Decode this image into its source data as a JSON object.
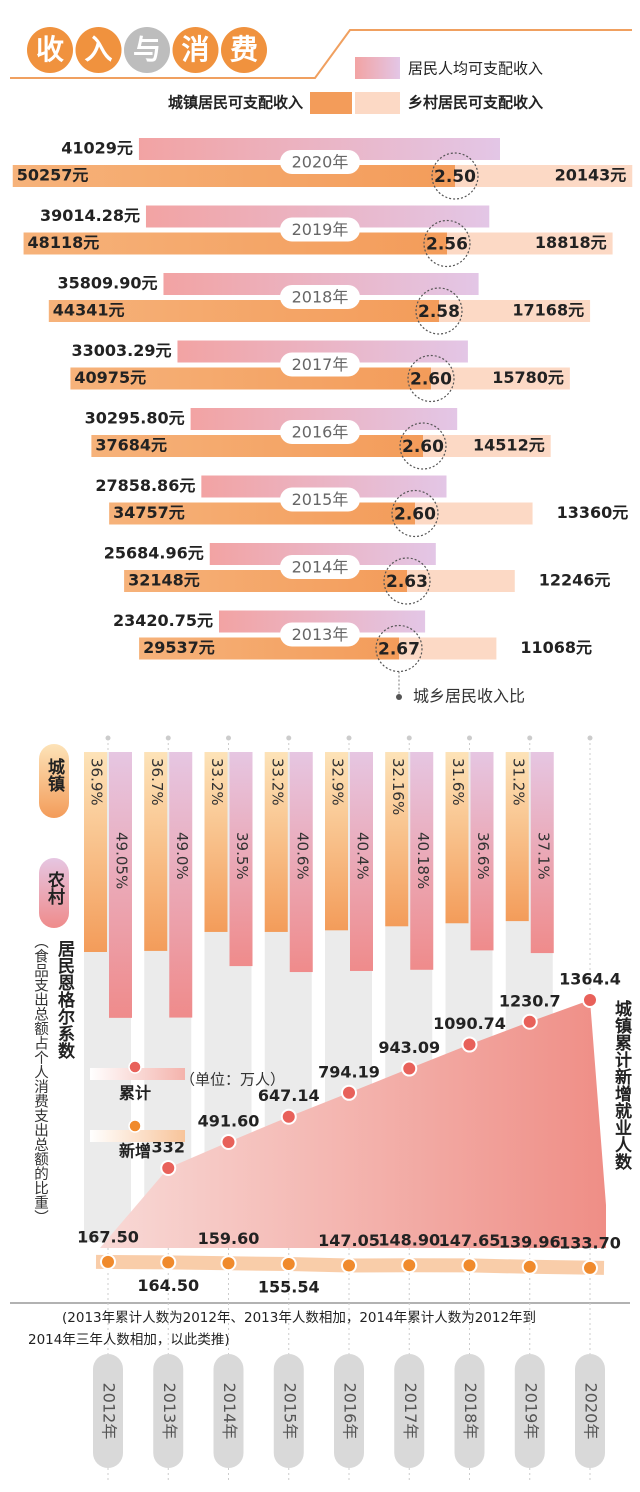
{
  "title": [
    "收",
    "入",
    "与",
    "消",
    "费"
  ],
  "chart_data": [
    {
      "type": "bar",
      "orientation": "horizontal",
      "categories": [
        "2020年",
        "2019年",
        "2018年",
        "2017年",
        "2016年",
        "2015年",
        "2014年",
        "2013年"
      ],
      "series": [
        {
          "name": "居民人均可支配收入",
          "color": "#f2a3a3",
          "values": [
            41029,
            39014.28,
            35809.9,
            33003.29,
            30295.8,
            27858.86,
            25684.96,
            23420.75
          ],
          "value_labels": [
            "41029元",
            "39014.28元",
            "35809.90元",
            "33003.29元",
            "30295.80元",
            "27858.86元",
            "25684.96元",
            "23420.75元"
          ]
        },
        {
          "name": "城镇居民可支配收入",
          "color": "#f39c5a",
          "values": [
            50257,
            48118,
            44341,
            40975,
            37684,
            34757,
            32148,
            29537
          ],
          "value_labels": [
            "50257元",
            "48118元",
            "44341元",
            "40975元",
            "37684元",
            "34757元",
            "32148元",
            "29537元"
          ]
        },
        {
          "name": "乡村居民可支配收入",
          "color": "#fcd9c5",
          "values": [
            20143,
            18818,
            17168,
            15780,
            14512,
            13360,
            12246,
            11068
          ],
          "value_labels": [
            "20143元",
            "18818元",
            "17168元",
            "15780元",
            "14512元",
            "13360元",
            "12246元",
            "11068元"
          ]
        }
      ],
      "ratio": {
        "name": "城乡居民收入比",
        "values": [
          2.5,
          2.56,
          2.58,
          2.6,
          2.6,
          2.6,
          2.63,
          2.67
        ],
        "value_labels": [
          "2.50",
          "2.56",
          "2.58",
          "2.60",
          "2.60",
          "2.60",
          "2.63",
          "2.67"
        ]
      }
    },
    {
      "type": "column",
      "label": "居民恩格尔系数",
      "sublabel": "（食品支出总额占个人消费支出总额的比重）",
      "series": [
        {
          "name": "城镇",
          "color": "#f39c5a",
          "values": [
            36.9,
            36.7,
            33.2,
            33.2,
            32.9,
            32.16,
            31.6,
            31.2
          ],
          "value_labels": [
            "36.9%",
            "36.7%",
            "33.2%",
            "33.2%",
            "32.9%",
            "32.16%",
            "31.6%",
            "31.2%"
          ]
        },
        {
          "name": "农村",
          "color": "#ef8b8b",
          "values": [
            49.05,
            49.0,
            39.5,
            40.6,
            40.4,
            40.18,
            36.6,
            37.1
          ],
          "value_labels": [
            "49.05%",
            "49.0%",
            "39.5%",
            "40.6%",
            "40.4%",
            "40.18%",
            "36.6%",
            "37.1%"
          ]
        }
      ]
    },
    {
      "type": "line",
      "label": "城镇累计新增就业人数",
      "unit": "（单位：万人）",
      "categories": [
        "2012年",
        "2013年",
        "2014年",
        "2015年",
        "2016年",
        "2017年",
        "2018年",
        "2019年",
        "2020年"
      ],
      "series": [
        {
          "name": "累计",
          "color": "#e8615a",
          "values": [
            null,
            332,
            491.6,
            647.14,
            794.19,
            943.09,
            1090.74,
            1230.7,
            1364.4
          ],
          "value_labels": [
            null,
            "332",
            "491.60",
            "647.14",
            "794.19",
            "943.09",
            "1090.74",
            "1230.7",
            "1364.4"
          ]
        },
        {
          "name": "新增",
          "color": "#f08a2c",
          "values": [
            167.5,
            164.5,
            159.6,
            155.54,
            147.05,
            148.9,
            147.65,
            139.96,
            133.7
          ],
          "value_labels": [
            "167.50",
            "164.50",
            "159.60",
            "155.54",
            "147.05",
            "148.90",
            "147.65",
            "139.96",
            "133.70"
          ]
        }
      ],
      "note": [
        "(2013年累计人数为2012年、2013年人数相加，2014年累计人数为2012年到",
        "2014年三年人数相加，以此类推)"
      ]
    }
  ]
}
